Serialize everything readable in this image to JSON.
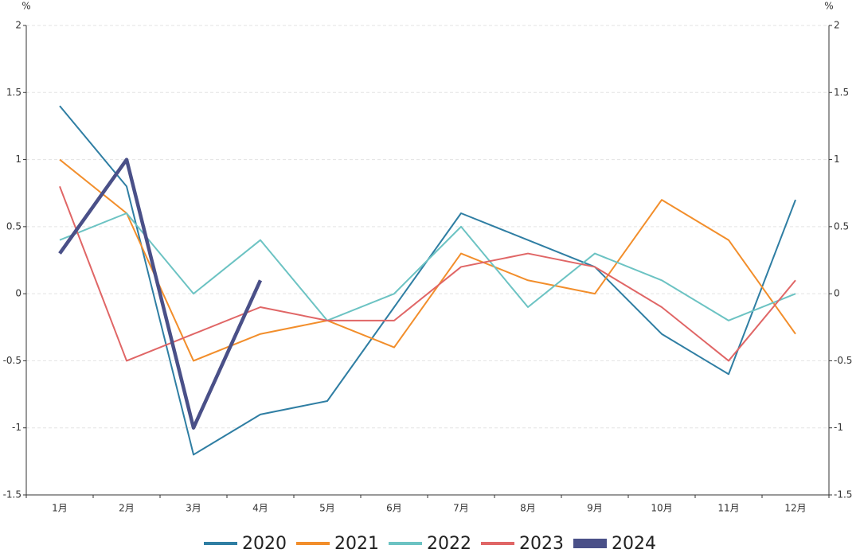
{
  "chart_data": {
    "type": "line",
    "y_unit": "%",
    "y2_unit": "%",
    "categories": [
      "1月",
      "2月",
      "3月",
      "4月",
      "5月",
      "6月",
      "7月",
      "8月",
      "9月",
      "10月",
      "11月",
      "12月"
    ],
    "series": [
      {
        "name": "2020",
        "color": "#2f7ea3",
        "values": [
          1.4,
          0.8,
          -1.2,
          -0.9,
          -0.8,
          -0.1,
          0.6,
          0.4,
          0.2,
          -0.3,
          -0.6,
          0.7
        ]
      },
      {
        "name": "2021",
        "color": "#f28e2b",
        "values": [
          1.0,
          0.6,
          -0.5,
          -0.3,
          -0.2,
          -0.4,
          0.3,
          0.1,
          0.0,
          0.7,
          0.4,
          -0.3
        ]
      },
      {
        "name": "2022",
        "color": "#6cc3c3",
        "values": [
          0.4,
          0.6,
          0.0,
          0.4,
          -0.2,
          0.0,
          0.5,
          -0.1,
          0.3,
          0.1,
          -0.2,
          0.0
        ]
      },
      {
        "name": "2023",
        "color": "#e06666",
        "values": [
          0.8,
          -0.5,
          -0.3,
          -0.1,
          -0.2,
          -0.2,
          0.2,
          0.3,
          0.2,
          -0.1,
          -0.5,
          0.1
        ]
      },
      {
        "name": "2024",
        "color": "#4a5088",
        "values": [
          0.3,
          1.0,
          -1.0,
          0.1,
          null,
          null,
          null,
          null,
          null,
          null,
          null,
          null
        ]
      }
    ],
    "ylim": [
      -1.5,
      2
    ],
    "yticks": [
      -1.5,
      -1,
      -0.5,
      0,
      0.5,
      1,
      1.5,
      2
    ],
    "y2lim": [
      -1.5,
      2
    ],
    "y2ticks": [
      -1.5,
      -1,
      -0.5,
      0,
      0.5,
      1,
      1.5,
      2
    ],
    "grid": true,
    "legend": "bottom"
  }
}
